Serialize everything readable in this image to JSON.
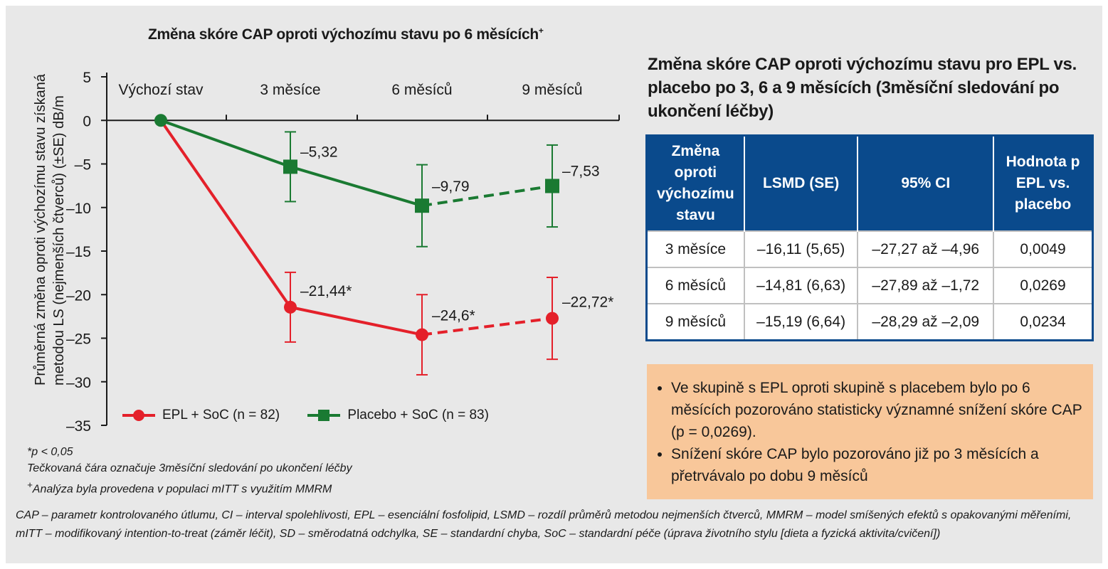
{
  "chart_data": {
    "type": "line",
    "title": "Změna skóre CAP oproti výchozímu stavu po 6 měsících",
    "title_marker": "+",
    "ylabel_line1": "Průměrná změna oproti výchozímu stavu získaná",
    "ylabel_line2": "metodou LS (nejmenších čtverců) (±SE) dB/m",
    "categories": [
      "Výchozí stav",
      "3 měsíce",
      "6 měsíců",
      "9 měsíců"
    ],
    "ylim": [
      -35,
      5
    ],
    "yticks": [
      "5",
      "0",
      "-5",
      "-10",
      "-15",
      "-20",
      "-25",
      "-30",
      "-35"
    ],
    "legend_position": "bottom-left",
    "series": [
      {
        "name": "EPL + SoC (n = 82)",
        "color": "#e4202a",
        "marker": "circle",
        "values": [
          0,
          -21.44,
          -24.6,
          -22.72
        ],
        "errors": [
          0,
          4.0,
          4.6,
          4.7
        ],
        "labels": [
          "",
          "–21,44*",
          "–24,6*",
          "–22,72*"
        ],
        "dashed_segment_from_index": 2
      },
      {
        "name": "Placebo + SoC (n = 83)",
        "color": "#1a7a32",
        "marker": "square",
        "values": [
          0,
          -5.32,
          -9.79,
          -7.53
        ],
        "errors": [
          0,
          4.0,
          4.7,
          4.7
        ],
        "labels": [
          "",
          "–5,32",
          "–9,79",
          "–7,53"
        ],
        "dashed_segment_from_index": 2
      }
    ]
  },
  "notes": [
    "*p < 0,05",
    "Tečkovaná čára označuje 3měsíční sledování po ukončení léčby",
    "Analýza byla provedena v populaci mITT s využitím MMRM"
  ],
  "note_marker": "+",
  "table": {
    "title": "Změna skóre CAP oproti výchozímu stavu pro EPL vs. placebo po 3, 6 a 9 měsících (3měsíční sledování po ukončení léčby)",
    "headers": [
      "Změna oproti výchozímu stavu",
      "LSMD (SE)",
      "95% CI",
      "Hodnota p EPL vs. placebo"
    ],
    "rows": [
      [
        "3 měsíce",
        "–16,11 (5,65)",
        "–27,27 až –4,96",
        "0,0049"
      ],
      [
        "6 měsíců",
        "–14,81 (6,63)",
        "–27,89 až –1,72",
        "0,0269"
      ],
      [
        "9 měsíců",
        "–15,19 (6,64)",
        "–28,29 až –2,09",
        "0,0234"
      ]
    ],
    "header_color": "#0a4a8c"
  },
  "summary": [
    "Ve skupině s EPL oproti skupině s placebem bylo po 6 měsících pozorováno statisticky významné snížení skóre CAP (p = 0,0269).",
    "Snížení skóre CAP bylo pozorováno již po 3 měsících a přetrvávalo po dobu 9 měsíců"
  ],
  "footnote": "CAP – parametr kontrolovaného útlumu, CI – interval spolehlivosti, EPL – esenciální fosfolipid, LSMD – rozdíl průměrů metodou nejmenších čtverců, MMRM – model smíšených efektů s opakovanými měřeními, mITT – modifikovaný intention-to-treat (záměr léčit), SD – směrodatná odchylka, SE – standardní chyba, SoC – standardní péče (úprava životního stylu [dieta a fyzická aktivita/cvičení])"
}
